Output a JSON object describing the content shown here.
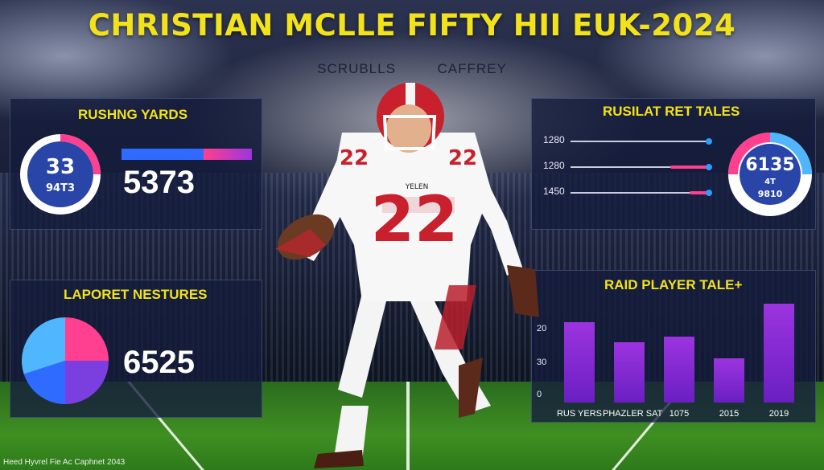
{
  "header": {
    "title": "CHRISTIAN MCLLE FIFTY HII EUK-2024",
    "subtitle_left": "SCRUBLLS",
    "subtitle_right": "CAFFREY"
  },
  "rushing_panel": {
    "title": "RUSHNG YARDS",
    "ring_top": "33",
    "ring_bottom": "94T3",
    "big_value": "5373",
    "bar_fill_fraction": 0.6,
    "colors": {
      "ring": "#ff3f8f",
      "bar": "#2f6bff",
      "bar_accent": "#ff3f8f"
    }
  },
  "stats_panel": {
    "title": "RUSILAT RET TALES",
    "rows": [
      {
        "label": "1280",
        "fill": 0.98
      },
      {
        "label": "1280",
        "fill": 0.28
      },
      {
        "label": "1450",
        "fill": 0.14
      }
    ],
    "ring_top": "6135",
    "ring_mid": "4T",
    "ring_bottom": "9810"
  },
  "lower_left_panel": {
    "title": "LAPORET NESTURES",
    "big_value": "6525",
    "pie": [
      {
        "value": 0.25,
        "color": "#ff3f8f"
      },
      {
        "value": 0.25,
        "color": "#7b3fe0"
      },
      {
        "value": 0.2,
        "color": "#2f6bff"
      },
      {
        "value": 0.3,
        "color": "#4fb6ff"
      }
    ]
  },
  "bar_panel": {
    "title": "RAID PLAYER TALE+",
    "y_labels": [
      "20",
      "30",
      "0"
    ],
    "categories": [
      "RUS YERS",
      "PHAZLER SAT",
      "1075",
      "2015",
      "2019"
    ],
    "values": [
      0.6,
      0.45,
      0.49,
      0.33,
      0.74
    ],
    "bar_color": "#8a2be2"
  },
  "footer": {
    "text": "Heed Hyvrel Fie Ac Caphnet 2043"
  },
  "player": {
    "jersey_number": "22",
    "jersey_text": "YELEN"
  }
}
